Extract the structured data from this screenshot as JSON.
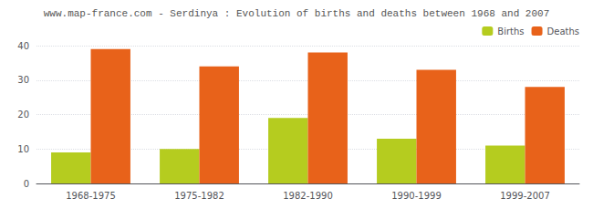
{
  "chart_data": {
    "type": "bar",
    "title": "www.map-france.com - Serdinya : Evolution of births and deaths between 1968 and 2007",
    "categories": [
      "1968-1975",
      "1975-1982",
      "1982-1990",
      "1990-1999",
      "1999-2007"
    ],
    "series": [
      {
        "name": "Births",
        "color": "#b5cc1f",
        "values": [
          9,
          10,
          19,
          13,
          11
        ]
      },
      {
        "name": "Deaths",
        "color": "#e8621a",
        "values": [
          39,
          34,
          38,
          33,
          28
        ]
      }
    ],
    "ylim": [
      0,
      40
    ],
    "yticks": [
      0,
      10,
      20,
      30,
      40
    ],
    "grid": true,
    "legend": "upper right"
  }
}
